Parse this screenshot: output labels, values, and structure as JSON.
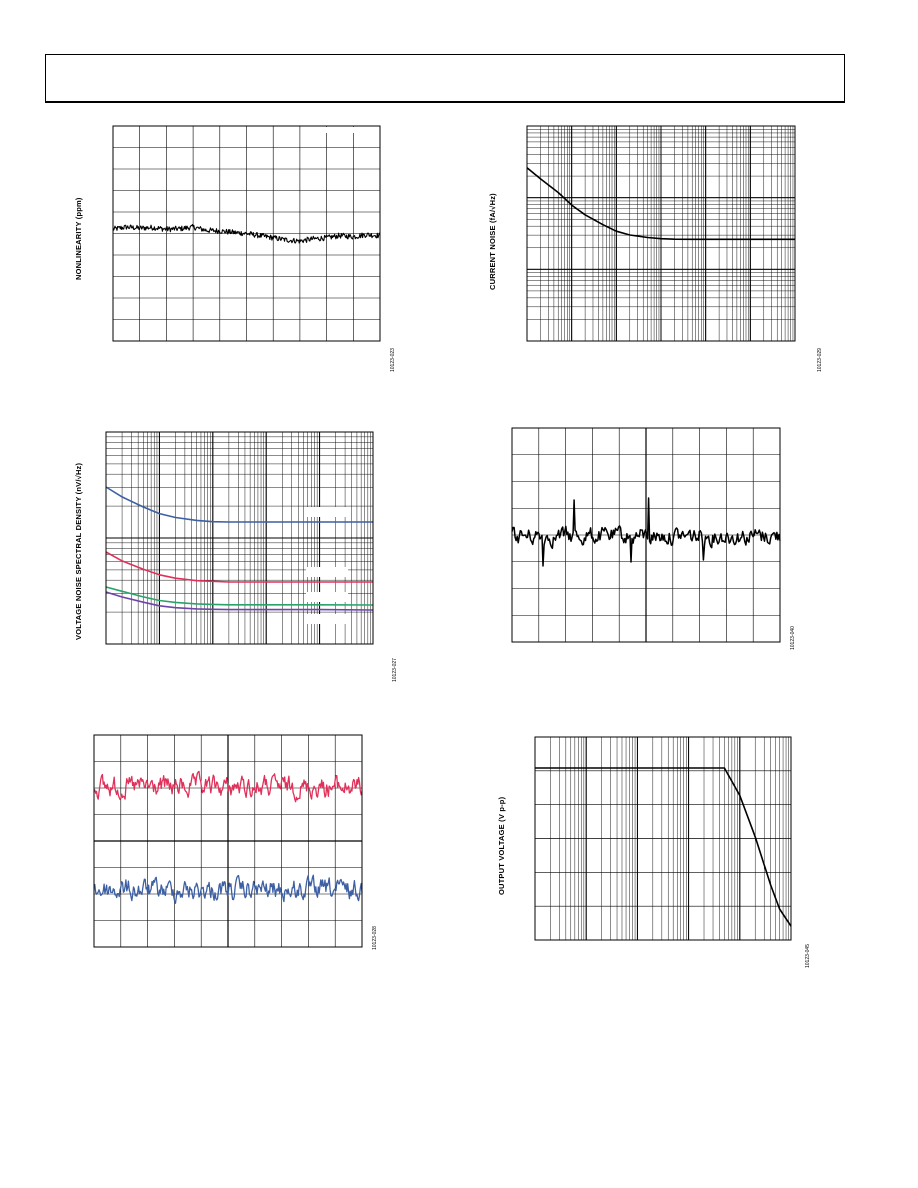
{
  "page": {
    "header_text": ""
  },
  "colors": {
    "black": "#000000",
    "blue": "#3d5fa3",
    "red": "#e0315a",
    "green": "#2aa36b",
    "purple": "#6d46a8",
    "grid": "#000000"
  },
  "charts": [
    {
      "id": "nonlinearity",
      "ylabel": "NONLINEARITY (ppm)",
      "figid": "10123-023"
    },
    {
      "id": "current-noise",
      "ylabel": "CURRENT NOISE (fA/√Hz)",
      "figid": "10123-029"
    },
    {
      "id": "voltage-noise",
      "ylabel": "VOLTAGE NOISE SPECTRAL DENSITY (nV/√Hz)",
      "figid": "10123-027"
    },
    {
      "id": "noise-time",
      "ylabel": "",
      "figid": "10123-040"
    },
    {
      "id": "dual-noise",
      "ylabel": "",
      "figid": "10123-028"
    },
    {
      "id": "output-voltage",
      "ylabel": "OUTPUT VOLTAGE (V p-p)",
      "figid": "10123-045"
    }
  ],
  "chart_data": [
    {
      "type": "line",
      "xlabel": "",
      "ylabel": "NONLINEARITY (ppm)",
      "x": [
        0,
        0.05,
        0.1,
        0.15,
        0.2,
        0.25,
        0.3,
        0.35,
        0.4,
        0.45,
        0.5,
        0.55,
        0.6,
        0.65,
        0.7,
        0.75,
        0.8,
        0.85,
        0.9,
        0.95,
        1.0
      ],
      "series": [
        {
          "values": [
            0.2,
            0.3,
            0.25,
            0.28,
            0.2,
            0.22,
            0.3,
            0.15,
            0.12,
            0.05,
            0.0,
            -0.1,
            -0.2,
            -0.3,
            -0.35,
            -0.25,
            -0.2,
            -0.1,
            -0.15,
            -0.05,
            -0.1
          ]
        }
      ],
      "ylim": [
        -5,
        5
      ],
      "grid": true
    },
    {
      "type": "line",
      "xlabel": "",
      "ylabel": "CURRENT NOISE (fA/√Hz)",
      "xscale": "log",
      "yscale": "log",
      "x": [
        1,
        2,
        5,
        10,
        20,
        50,
        100,
        200,
        500,
        1000,
        2000,
        5000,
        10000,
        100000,
        1000000
      ],
      "series": [
        {
          "values": [
            100,
            70,
            45,
            30,
            22,
            16,
            13,
            11.5,
            10.6,
            10.2,
            10.05,
            10,
            10,
            10,
            10
          ]
        }
      ],
      "grid": true
    },
    {
      "type": "line",
      "xlabel": "",
      "ylabel": "VOLTAGE NOISE SPECTRAL DENSITY (nV/√Hz)",
      "xscale": "log",
      "yscale": "log",
      "x": [
        1,
        2,
        5,
        10,
        20,
        50,
        100,
        200,
        500,
        1000,
        10000,
        100000
      ],
      "series": [
        {
          "color": "blue",
          "values": [
            300,
            220,
            160,
            130,
            115,
            105,
            101,
            100,
            100,
            100,
            100,
            100
          ]
        },
        {
          "color": "red",
          "values": [
            60,
            42,
            30,
            24,
            21,
            19,
            18.5,
            18,
            18,
            18,
            18,
            18
          ]
        },
        {
          "color": "green",
          "values": [
            25,
            20,
            15,
            12.5,
            11.3,
            10.5,
            10.2,
            10,
            10,
            10,
            10,
            9.9
          ]
        },
        {
          "color": "purple",
          "values": [
            22,
            17,
            13,
            10.8,
            9.8,
            9.2,
            9,
            8.9,
            8.9,
            8.9,
            8.9,
            8.7
          ]
        }
      ],
      "grid": true
    },
    {
      "type": "line",
      "xlabel": "",
      "ylabel": "",
      "series": [
        {
          "values": []
        }
      ],
      "grid": true
    },
    {
      "type": "line",
      "xlabel": "",
      "ylabel": "",
      "series": [
        {
          "color": "red",
          "values": []
        },
        {
          "color": "blue",
          "values": []
        }
      ],
      "grid": true
    },
    {
      "type": "line",
      "xlabel": "",
      "ylabel": "OUTPUT VOLTAGE (V p-p)",
      "xscale": "log",
      "x": [
        1,
        10,
        100,
        1000,
        5000,
        10000,
        20000,
        40000,
        60000,
        100000
      ],
      "series": [
        {
          "values": [
            5,
            5,
            5,
            5,
            5,
            4.2,
            3.0,
            1.6,
            0.9,
            0.4
          ]
        }
      ],
      "grid": true
    }
  ]
}
